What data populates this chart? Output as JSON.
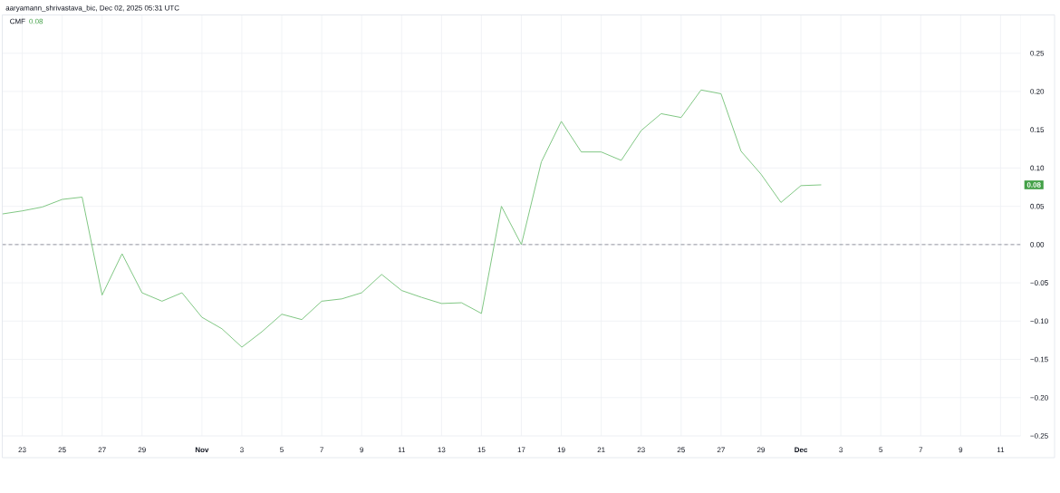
{
  "chart_data": {
    "type": "line",
    "title": "aaryamann_shrivastava_bic, Dec 02, 2025 05:31 UTC",
    "series": [
      {
        "name": "CMF",
        "color": "#81c784",
        "x": [
          "2025-10-22",
          "2025-10-23",
          "2025-10-24",
          "2025-10-25",
          "2025-10-26",
          "2025-10-27",
          "2025-10-28",
          "2025-10-29",
          "2025-10-30",
          "2025-10-31",
          "2025-11-01",
          "2025-11-02",
          "2025-11-03",
          "2025-11-04",
          "2025-11-05",
          "2025-11-06",
          "2025-11-07",
          "2025-11-08",
          "2025-11-09",
          "2025-11-10",
          "2025-11-11",
          "2025-11-12",
          "2025-11-13",
          "2025-11-14",
          "2025-11-15",
          "2025-11-16",
          "2025-11-17",
          "2025-11-18",
          "2025-11-19",
          "2025-11-20",
          "2025-11-21",
          "2025-11-22",
          "2025-11-23",
          "2025-11-24",
          "2025-11-25",
          "2025-11-26",
          "2025-11-27",
          "2025-11-28",
          "2025-11-29",
          "2025-11-30",
          "2025-12-01",
          "2025-12-02"
        ],
        "values": [
          0.04,
          0.044,
          0.049,
          0.059,
          0.062,
          -0.066,
          -0.012,
          -0.063,
          -0.074,
          -0.063,
          -0.095,
          -0.11,
          -0.134,
          -0.114,
          -0.091,
          -0.098,
          -0.074,
          -0.071,
          -0.063,
          -0.039,
          -0.06,
          -0.069,
          -0.077,
          -0.076,
          -0.09,
          0.05,
          0,
          0.108,
          0.161,
          0.121,
          0.121,
          0.11,
          0.149,
          0.171,
          0.166,
          0.202,
          0.197,
          0.122,
          0.092,
          0.055,
          0.077,
          0.078
        ]
      }
    ],
    "xlim": [
      "2025-10-22",
      "2025-12-12"
    ],
    "ylim": [
      -0.25,
      0.3
    ],
    "xticks": [
      {
        "value": "2025-10-23",
        "label": "23"
      },
      {
        "value": "2025-10-25",
        "label": "25"
      },
      {
        "value": "2025-10-27",
        "label": "27"
      },
      {
        "value": "2025-10-29",
        "label": "29"
      },
      {
        "value": "2025-11-01",
        "label": "Nov"
      },
      {
        "value": "2025-11-03",
        "label": "3"
      },
      {
        "value": "2025-11-05",
        "label": "5"
      },
      {
        "value": "2025-11-07",
        "label": "7"
      },
      {
        "value": "2025-11-09",
        "label": "9"
      },
      {
        "value": "2025-11-11",
        "label": "11"
      },
      {
        "value": "2025-11-13",
        "label": "13"
      },
      {
        "value": "2025-11-15",
        "label": "15"
      },
      {
        "value": "2025-11-17",
        "label": "17"
      },
      {
        "value": "2025-11-19",
        "label": "19"
      },
      {
        "value": "2025-11-21",
        "label": "21"
      },
      {
        "value": "2025-11-23",
        "label": "23"
      },
      {
        "value": "2025-11-25",
        "label": "25"
      },
      {
        "value": "2025-11-27",
        "label": "27"
      },
      {
        "value": "2025-11-29",
        "label": "29"
      },
      {
        "value": "2025-12-01",
        "label": "Dec"
      },
      {
        "value": "2025-12-03",
        "label": "3"
      },
      {
        "value": "2025-12-05",
        "label": "5"
      },
      {
        "value": "2025-12-07",
        "label": "7"
      },
      {
        "value": "2025-12-09",
        "label": "9"
      },
      {
        "value": "2025-12-11",
        "label": "11"
      }
    ],
    "yticks": [
      {
        "value": -0.25,
        "label": "−0.25"
      },
      {
        "value": -0.2,
        "label": "−0.20"
      },
      {
        "value": -0.15,
        "label": "−0.15"
      },
      {
        "value": -0.1,
        "label": "−0.10"
      },
      {
        "value": -0.05,
        "label": "−0.05"
      },
      {
        "value": 0,
        "label": "0.00"
      },
      {
        "value": 0.05,
        "label": "0.05"
      },
      {
        "value": 0.1,
        "label": "0.10"
      },
      {
        "value": 0.15,
        "label": "0.15"
      },
      {
        "value": 0.2,
        "label": "0.20"
      },
      {
        "value": 0.25,
        "label": "0.25"
      }
    ],
    "grid": true,
    "legend": "top left",
    "line_style": "solid",
    "ref_lines": [
      {
        "axis": "y",
        "value": 0,
        "color": "#9598a1",
        "line_style": "dashed"
      }
    ],
    "annotations": [
      "0.08",
      "0.08"
    ]
  }
}
